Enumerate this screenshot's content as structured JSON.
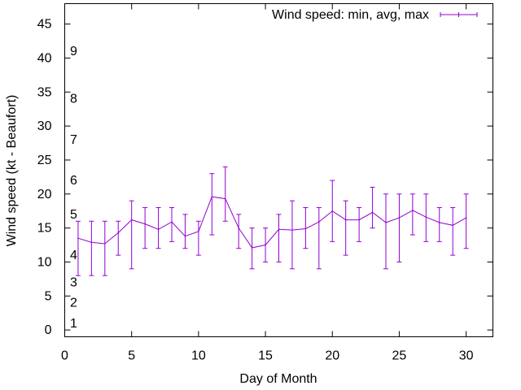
{
  "chart_data": {
    "type": "line",
    "xlabel": "Day of Month",
    "ylabel": "Wind speed (kt - Beaufort)",
    "xlim": [
      0,
      32
    ],
    "ylim": [
      -1,
      48
    ],
    "xticks": [
      0,
      5,
      10,
      15,
      20,
      25,
      30
    ],
    "yticks": [
      0,
      5,
      10,
      15,
      20,
      25,
      30,
      35,
      40,
      45
    ],
    "grid": false,
    "legend_position": "top-right",
    "colors": {
      "series": "#9400d3",
      "axis": "#000000"
    },
    "beaufort_labels": [
      {
        "label": "1",
        "y": 1
      },
      {
        "label": "2",
        "y": 4
      },
      {
        "label": "3",
        "y": 7
      },
      {
        "label": "4",
        "y": 11
      },
      {
        "label": "5",
        "y": 17
      },
      {
        "label": "6",
        "y": 22
      },
      {
        "label": "7",
        "y": 28
      },
      {
        "label": "8",
        "y": 34
      },
      {
        "label": "9",
        "y": 41
      }
    ],
    "series": [
      {
        "name": "Wind speed: min, avg, max",
        "x": [
          1,
          2,
          3,
          4,
          5,
          6,
          7,
          8,
          9,
          10,
          11,
          12,
          13,
          14,
          15,
          16,
          17,
          18,
          19,
          20,
          21,
          22,
          23,
          24,
          25,
          26,
          27,
          28,
          29,
          30
        ],
        "avg": [
          13.5,
          12.9,
          12.7,
          14.3,
          16.2,
          15.6,
          14.8,
          15.9,
          13.8,
          14.5,
          19.6,
          19.3,
          15.0,
          12.1,
          12.5,
          14.8,
          14.7,
          14.9,
          15.9,
          17.5,
          16.2,
          16.2,
          17.3,
          15.8,
          16.5,
          17.6,
          16.6,
          15.8,
          15.4,
          16.5
        ],
        "min": [
          8,
          8,
          8,
          11,
          9,
          12,
          12,
          13,
          12,
          11,
          14,
          16,
          12,
          9,
          10,
          10,
          9,
          12,
          9,
          13,
          11,
          13,
          15,
          9,
          10,
          14,
          13,
          13,
          11,
          12
        ],
        "max": [
          16,
          16,
          16,
          16,
          19,
          18,
          18,
          18,
          17,
          16,
          23,
          24,
          17,
          15,
          15,
          17,
          19,
          18,
          18,
          22,
          19,
          18,
          21,
          20,
          20,
          20,
          20,
          18,
          18,
          20
        ]
      }
    ]
  }
}
